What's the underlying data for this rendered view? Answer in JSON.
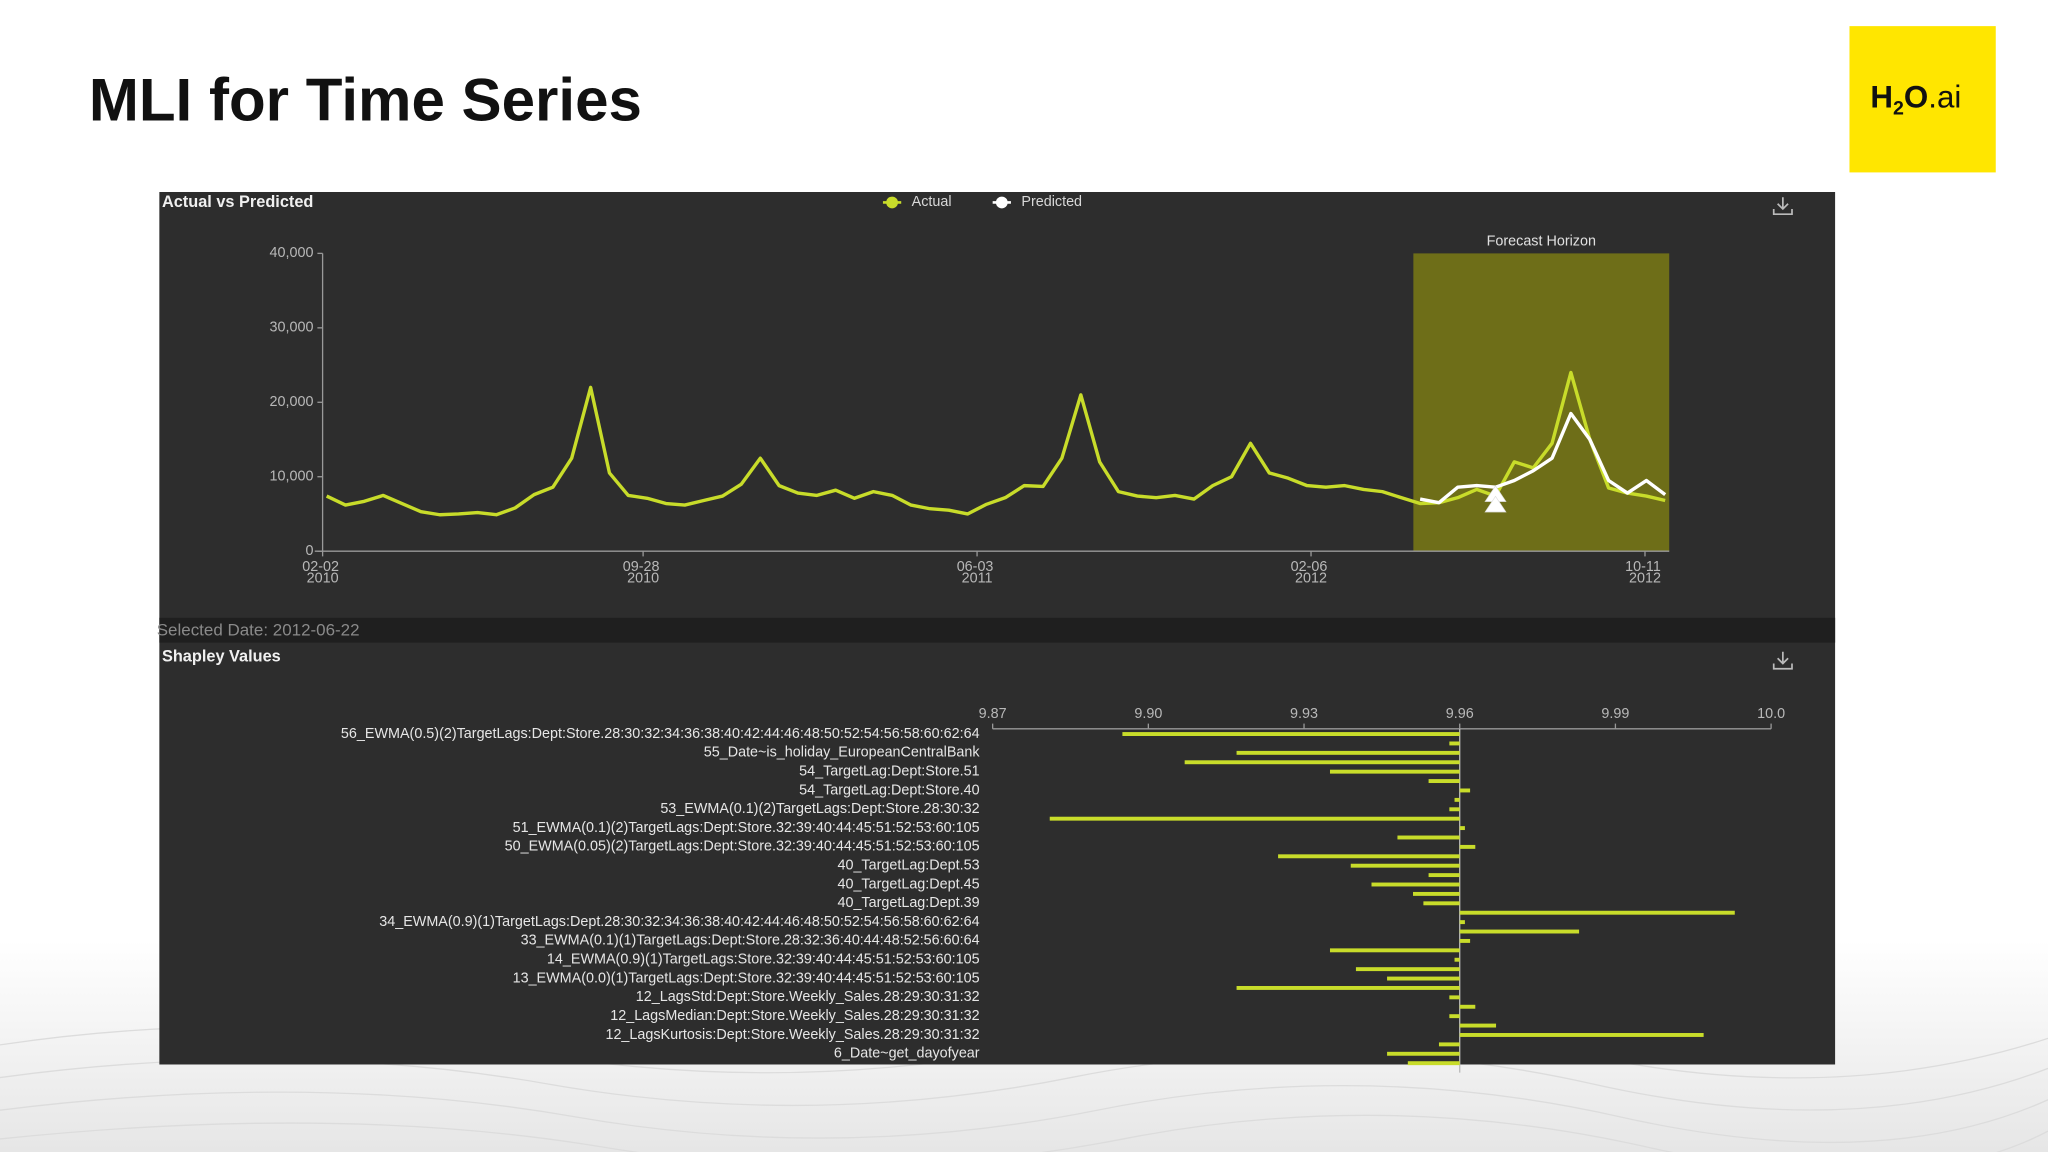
{
  "slide": {
    "title": "MLI for Time Series",
    "logo": [
      "H",
      "2",
      "O",
      ".ai"
    ]
  },
  "chart_data": [
    {
      "type": "line",
      "title": "Actual vs Predicted",
      "x": [
        "2010-02-05",
        "2010-02-19",
        "2010-03-05",
        "2010-03-19",
        "2010-04-02",
        "2010-04-16",
        "2010-04-30",
        "2010-05-14",
        "2010-05-28",
        "2010-06-11",
        "2010-06-25",
        "2010-07-09",
        "2010-07-23",
        "2010-08-06",
        "2010-08-20",
        "2010-09-03",
        "2010-09-17",
        "2010-10-01",
        "2010-10-15",
        "2010-10-29",
        "2010-11-12",
        "2010-11-26",
        "2010-12-10",
        "2010-12-24",
        "2011-01-07",
        "2011-01-21",
        "2011-02-04",
        "2011-02-18",
        "2011-03-04",
        "2011-03-18",
        "2011-04-01",
        "2011-04-15",
        "2011-04-29",
        "2011-05-13",
        "2011-05-27",
        "2011-06-10",
        "2011-06-24",
        "2011-07-08",
        "2011-07-22",
        "2011-08-05",
        "2011-08-19",
        "2011-09-02",
        "2011-09-16",
        "2011-09-30",
        "2011-10-14",
        "2011-10-28",
        "2011-11-11",
        "2011-11-25",
        "2011-12-09",
        "2011-12-23",
        "2012-01-06",
        "2012-01-20",
        "2012-02-03",
        "2012-02-17",
        "2012-03-02",
        "2012-03-16",
        "2012-03-30",
        "2012-04-13",
        "2012-04-27",
        "2012-05-11",
        "2012-05-25",
        "2012-06-08",
        "2012-06-22",
        "2012-07-06",
        "2012-07-20",
        "2012-08-03",
        "2012-08-17",
        "2012-08-31",
        "2012-09-14",
        "2012-09-28",
        "2012-10-12",
        "2012-10-26"
      ],
      "series": [
        {
          "name": "Actual",
          "color": "#c8dc2a",
          "values": [
            7400,
            6200,
            6700,
            7500,
            6400,
            5300,
            4900,
            5000,
            5200,
            4900,
            5800,
            7600,
            8600,
            12500,
            22000,
            10500,
            7500,
            7100,
            6400,
            6200,
            6800,
            7400,
            9000,
            12500,
            8800,
            7800,
            7500,
            8200,
            7100,
            8000,
            7500,
            6200,
            5700,
            5500,
            5000,
            6300,
            7200,
            8800,
            8700,
            12500,
            21000,
            12000,
            8000,
            7400,
            7200,
            7500,
            7000,
            8800,
            10000,
            14500,
            10500,
            9800,
            8800,
            8600,
            8800,
            8300,
            8000,
            7200,
            6400,
            6500,
            7200,
            8300,
            7400,
            12000,
            11200,
            14500,
            24000,
            15000,
            8500,
            7800,
            7400,
            6800
          ]
        },
        {
          "name": "Predicted",
          "color": "#ffffff",
          "values": [
            null,
            null,
            null,
            null,
            null,
            null,
            null,
            null,
            null,
            null,
            null,
            null,
            null,
            null,
            null,
            null,
            null,
            null,
            null,
            null,
            null,
            null,
            null,
            null,
            null,
            null,
            null,
            null,
            null,
            null,
            null,
            null,
            null,
            null,
            null,
            null,
            null,
            null,
            null,
            null,
            null,
            null,
            null,
            null,
            null,
            null,
            null,
            null,
            null,
            null,
            null,
            null,
            null,
            null,
            null,
            null,
            null,
            null,
            7000,
            6500,
            8600,
            8800,
            8600,
            9500,
            10800,
            12500,
            18500,
            15000,
            9500,
            7800,
            9500,
            7600
          ]
        }
      ],
      "xlim": [
        "2010-02-02",
        "2012-10-29"
      ],
      "xticks": [
        {
          "value": "2010-02-02",
          "label": "02-02 2010"
        },
        {
          "value": "2010-09-28",
          "label": "09-28 2010"
        },
        {
          "value": "2011-06-03",
          "label": "06-03 2011"
        },
        {
          "value": "2012-02-06",
          "label": "02-06 2012"
        },
        {
          "value": "2012-10-11",
          "label": "10-11 2012"
        }
      ],
      "ylim": [
        0,
        40000
      ],
      "yticks": [
        0,
        {
          "value": 10000,
          "label": "10,000"
        },
        {
          "value": 20000,
          "label": "20,000"
        },
        {
          "value": 30000,
          "label": "30,000"
        },
        {
          "value": 40000,
          "label": "40,000"
        }
      ],
      "annotations": [
        {
          "label": "Forecast Horizon",
          "start": "2012-04-22",
          "end": "2012-10-29",
          "color": "#6e6e18"
        }
      ],
      "selected": {
        "label": "Selected Date: 2012-06-22",
        "date": "2012-06-22"
      }
    },
    {
      "type": "bar",
      "orientation": "horizontal",
      "title": "Shapley Values",
      "categories": [
        "56_EWMA(0.5)(2)TargetLags:Dept:Store.28:30:32:34:36:38:40:42:44:46:48:50:52:54:56:58:60:62:64",
        null,
        "55_Date~is_holiday_EuropeanCentralBank",
        null,
        "54_TargetLag:Dept:Store.51",
        null,
        "54_TargetLag:Dept:Store.40",
        null,
        "53_EWMA(0.1)(2)TargetLags:Dept:Store.28:30:32",
        null,
        "51_EWMA(0.1)(2)TargetLags:Dept:Store.32:39:40:44:45:51:52:53:60:105",
        null,
        "50_EWMA(0.05)(2)TargetLags:Dept:Store.32:39:40:44:45:51:52:53:60:105",
        null,
        "40_TargetLag:Dept.53",
        null,
        "40_TargetLag:Dept.45",
        null,
        "40_TargetLag:Dept.39",
        null,
        "34_EWMA(0.9)(1)TargetLags:Dept.28:30:32:34:36:38:40:42:44:46:48:50:52:54:56:58:60:62:64",
        null,
        "33_EWMA(0.1)(1)TargetLags:Dept:Store.28:32:36:40:44:48:52:56:60:64",
        null,
        "14_EWMA(0.9)(1)TargetLags:Store.32:39:40:44:45:51:52:53:60:105",
        null,
        "13_EWMA(0.0)(1)TargetLags:Dept:Store.32:39:40:44:45:51:52:53:60:105",
        null,
        "12_LagsStd:Dept:Store.Weekly_Sales.28:29:30:31:32",
        null,
        "12_LagsMedian:Dept:Store.Weekly_Sales.28:29:30:31:32",
        null,
        "12_LagsKurtosis:Dept:Store.Weekly_Sales.28:29:30:31:32",
        null,
        "6_Date~get_dayofyear",
        null
      ],
      "values": [
        9.895,
        9.958,
        9.917,
        9.907,
        9.935,
        9.954,
        9.962,
        9.959,
        9.958,
        9.881,
        9.961,
        9.948,
        9.963,
        9.925,
        9.939,
        9.954,
        9.943,
        9.951,
        9.953,
        10.013,
        9.961,
        9.983,
        9.962,
        9.935,
        9.959,
        9.94,
        9.946,
        9.917,
        9.958,
        9.963,
        9.958,
        9.967,
        10.007,
        9.956,
        9.946,
        9.95
      ],
      "base": 9.96,
      "color": "#c8dc2a",
      "xlim": [
        9.87,
        10.02
      ],
      "xticks": [
        9.87,
        {
          "value": 9.9,
          "label": "9.90"
        },
        9.93,
        9.96,
        9.99,
        {
          "value": 10.02,
          "label": "10.0"
        }
      ]
    }
  ]
}
